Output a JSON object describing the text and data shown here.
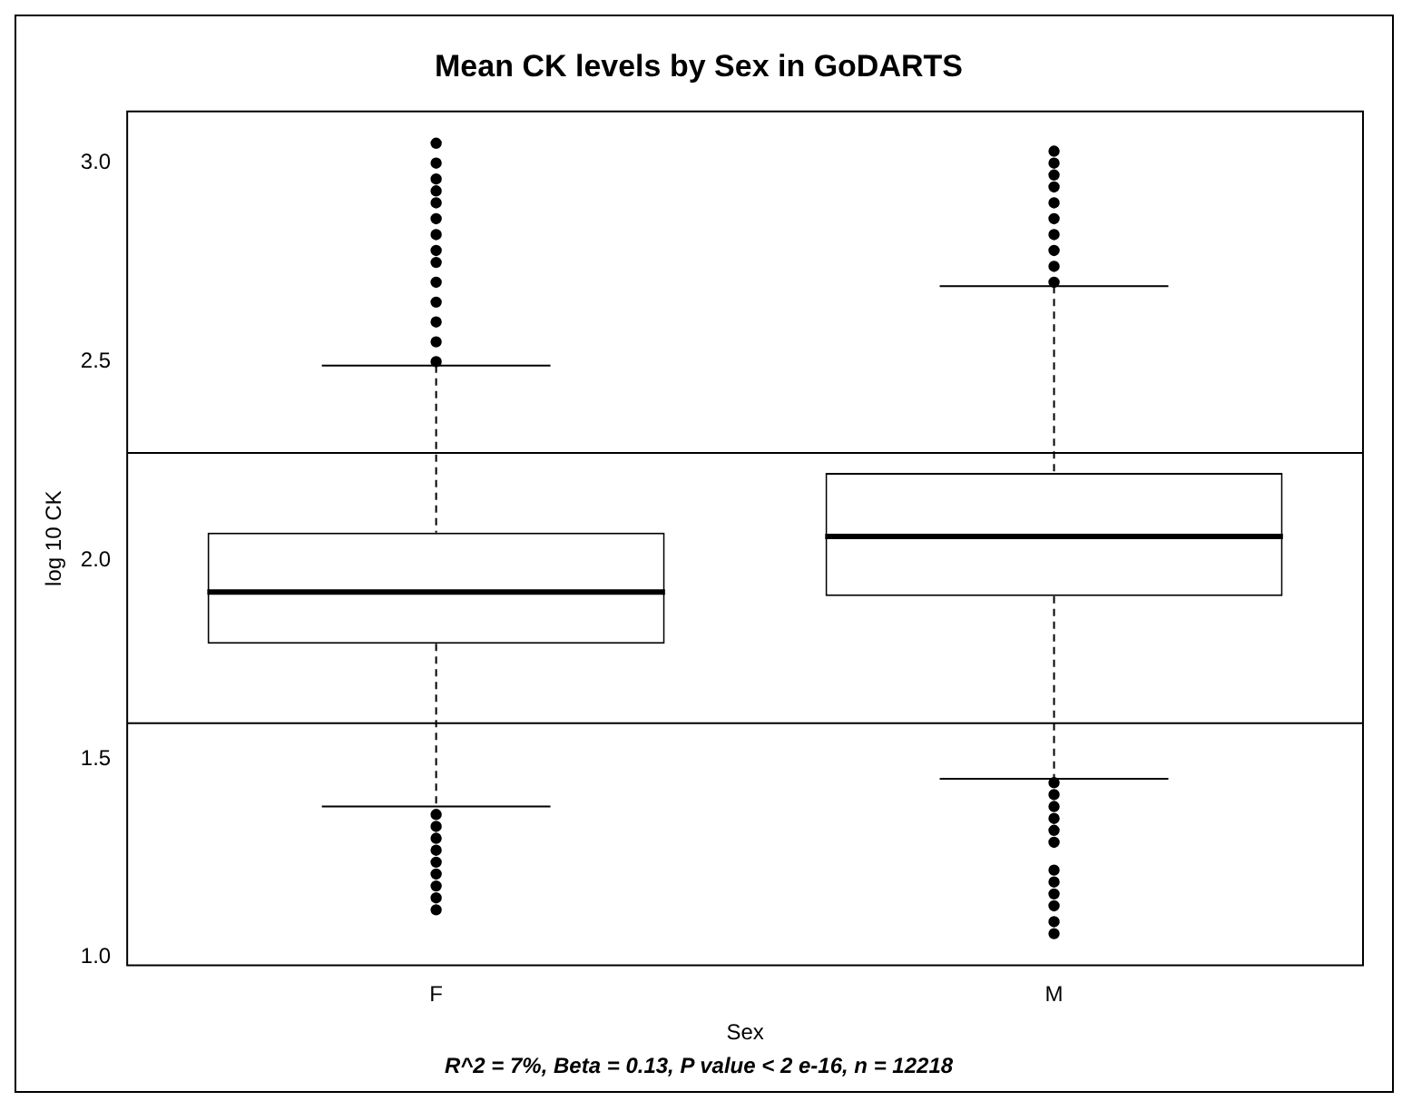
{
  "chart_data": {
    "type": "box",
    "title": "Mean CK levels by Sex in GoDARTS",
    "xlabel": "Sex",
    "ylabel": "log 10 CK",
    "categories": [
      "F",
      "M"
    ],
    "boxes": [
      {
        "low": 1.38,
        "q1": 1.79,
        "median": 1.92,
        "q3": 2.07,
        "high": 2.49,
        "outliers": [
          2.5,
          2.55,
          2.6,
          2.65,
          2.7,
          2.75,
          2.78,
          2.82,
          2.86,
          2.9,
          2.93,
          2.96,
          3.0,
          3.05,
          1.36,
          1.33,
          1.3,
          1.27,
          1.24,
          1.21,
          1.18,
          1.15,
          1.12
        ]
      },
      {
        "low": 1.45,
        "q1": 1.91,
        "median": 2.06,
        "q3": 2.22,
        "high": 2.69,
        "outliers": [
          2.7,
          2.74,
          2.78,
          2.82,
          2.86,
          2.9,
          2.94,
          2.97,
          3.0,
          3.03,
          1.44,
          1.41,
          1.38,
          1.35,
          1.32,
          1.29,
          1.22,
          1.19,
          1.16,
          1.13,
          1.09,
          1.06
        ]
      }
    ],
    "ylim": [
      0.98,
      3.13
    ],
    "yticks": [
      {
        "value": 1,
        "label": "1.0"
      },
      {
        "value": 1.5,
        "label": "1.5"
      },
      {
        "value": 2,
        "label": "2.0"
      },
      {
        "value": 2.5,
        "label": "2.5"
      },
      {
        "value": 3,
        "label": "3.0"
      }
    ],
    "ref_lines": [
      {
        "axis": "y",
        "value": 2.27
      },
      {
        "axis": "y",
        "value": 1.59
      }
    ],
    "marker": "circle",
    "grid": false,
    "legend": false,
    "annotations": [
      "R^2 = 7%, Beta = 0.13, P value < 2 e-16, n = 12218"
    ]
  }
}
